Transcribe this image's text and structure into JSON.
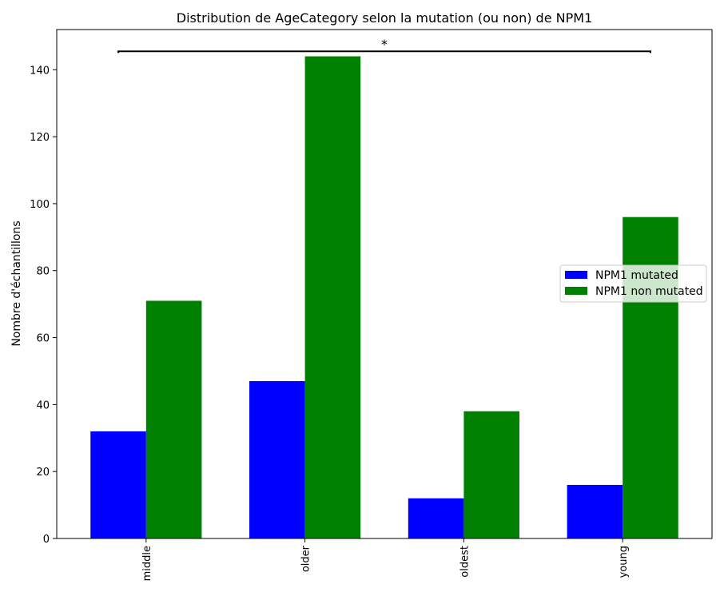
{
  "chart_data": {
    "type": "bar",
    "title": "Distribution de AgeCategory selon la mutation (ou non) de NPM1",
    "xlabel": "",
    "ylabel": "Nombre d'échantillons",
    "categories": [
      "middle",
      "older",
      "oldest",
      "young"
    ],
    "series": [
      {
        "name": "NPM1 mutated",
        "color": "#0000ff",
        "values": [
          32,
          47,
          12,
          16
        ]
      },
      {
        "name": "NPM1 non mutated",
        "color": "#008000",
        "values": [
          71,
          144,
          38,
          96
        ]
      }
    ],
    "ylim": [
      0,
      152
    ],
    "yticks": [
      0,
      20,
      40,
      60,
      80,
      100,
      120,
      140
    ],
    "grid": false,
    "legend_position": "center-right",
    "annotation": {
      "text": "*",
      "from_category": "middle",
      "to_category": "young",
      "y": 145.5
    }
  }
}
